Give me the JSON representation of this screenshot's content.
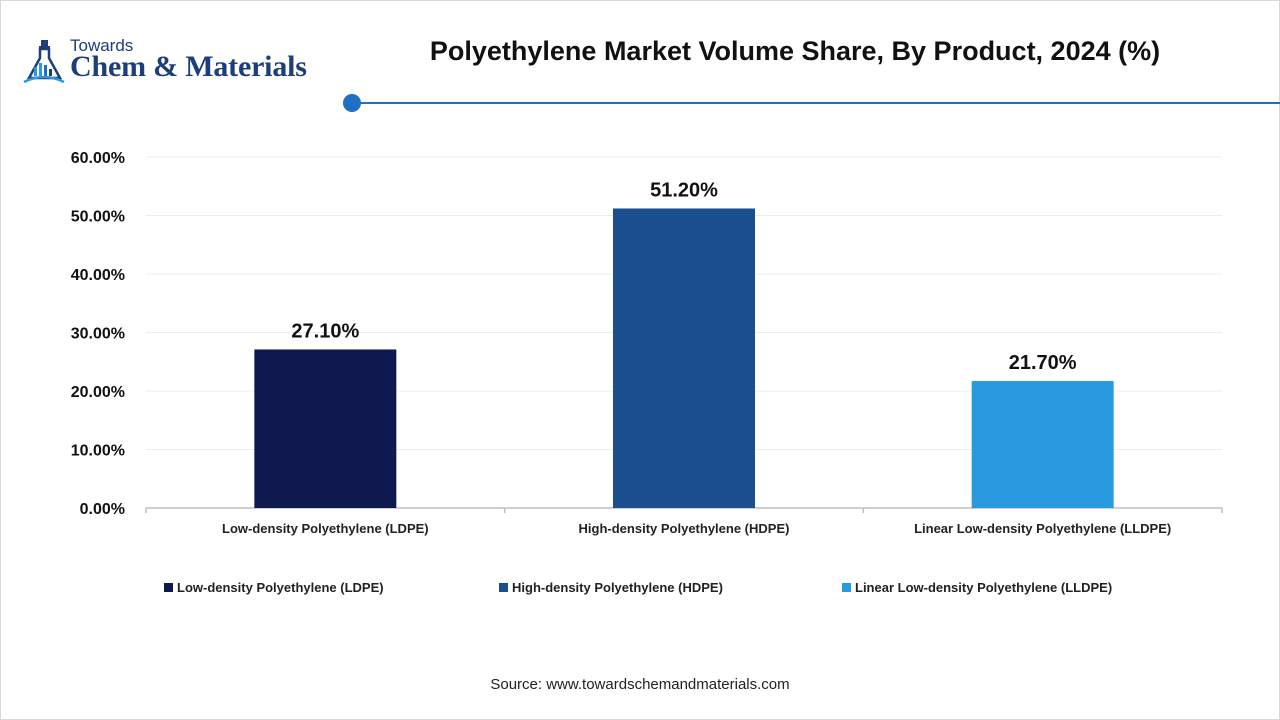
{
  "logo": {
    "line1": "Towards",
    "line2": "Chem & Materials"
  },
  "source": "Source: www.towardschemandmaterials.com",
  "colors": {
    "accent": "#1f6fc5",
    "ldpe": "#101850",
    "hdpe": "#1b4e8c",
    "lldpe": "#2999e0"
  },
  "chart_data": {
    "type": "bar",
    "title": "Polyethylene Market Volume Share, By Product, 2024 (%)",
    "categories": [
      "Low-density Polyethylene (LDPE)",
      "High-density Polyethylene (HDPE)",
      "Linear Low-density Polyethylene (LLDPE)"
    ],
    "values": [
      27.1,
      51.2,
      21.7
    ],
    "data_labels": [
      "27.10%",
      "51.20%",
      "21.70%"
    ],
    "bar_colors": [
      "#101850",
      "#1b4e8c",
      "#2999e0"
    ],
    "ylim": [
      0,
      60
    ],
    "yticks": [
      0,
      10,
      20,
      30,
      40,
      50,
      60
    ],
    "ytick_labels": [
      "0.00%",
      "10.00%",
      "20.00%",
      "30.00%",
      "40.00%",
      "50.00%",
      "60.00%"
    ],
    "grid": true,
    "legend": {
      "placement": "bottom",
      "entries": [
        "Low-density Polyethylene (LDPE)",
        "High-density Polyethylene (HDPE)",
        "Linear Low-density Polyethylene (LLDPE)"
      ]
    }
  }
}
